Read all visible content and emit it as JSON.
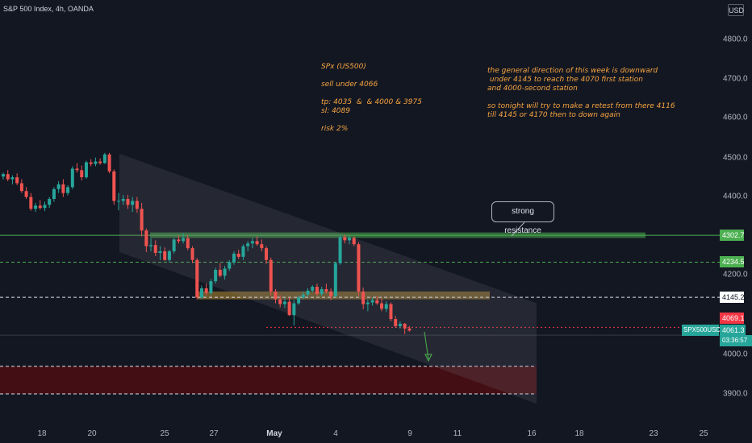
{
  "header": {
    "title": "S&P 500 Index, 4h, OANDA",
    "currency_button": "USD"
  },
  "notes": {
    "left": "SPx (US500)\n\nsell under 4066\n\ntp: 4035  &  & 4000 & 3975\nsl: 4089\n\nrisk 2%",
    "right": "the general direction of this week is downward\n under 4145 to reach the 4070 first station\nand 4000-second station\n\nso tonight will try to make a retest from there 4116\ntill 4145 or 4170 then to down again"
  },
  "callout": {
    "text": "strong resistance"
  },
  "price_axis": {
    "ticks": [
      "4800.0",
      "4700.0",
      "4600.0",
      "4500.0",
      "4400.0",
      "4200.0",
      "4000.0",
      "3900.0"
    ]
  },
  "time_axis": {
    "ticks": [
      "18",
      "20",
      "25",
      "27",
      "May",
      "4",
      "9",
      "11",
      "16",
      "18",
      "23",
      "25"
    ]
  },
  "price_badges": [
    {
      "text": "4302.7",
      "bg": "#4caf50",
      "fg": "#ffffff"
    },
    {
      "text": "4234.5",
      "bg": "#4caf50",
      "fg": "#ffffff"
    },
    {
      "text": "4145.2",
      "bg": "#ffffff",
      "fg": "#131722"
    },
    {
      "text": "4069.1",
      "bg": "#f23645",
      "fg": "#ffffff"
    }
  ],
  "symbol_badge": {
    "symbol": "SPX500USD",
    "price": "4061.3",
    "countdown": "03:36:57",
    "bg": "#26a69a"
  },
  "colors": {
    "up": "#26a69a",
    "down": "#ef5350",
    "resistance": "#4caf50",
    "support_zone": "#8b6d2e",
    "target_zone": "#4a0e13"
  },
  "chart_data": {
    "type": "candlestick",
    "symbol": "SPX500USD",
    "timeframe": "4h",
    "candles_ohlc": [
      [
        4452,
        4462,
        4444,
        4458
      ],
      [
        4458,
        4468,
        4440,
        4445
      ],
      [
        4445,
        4455,
        4432,
        4450
      ],
      [
        4450,
        4460,
        4430,
        4435
      ],
      [
        4435,
        4445,
        4410,
        4415
      ],
      [
        4415,
        4425,
        4395,
        4400
      ],
      [
        4400,
        4410,
        4365,
        4370
      ],
      [
        4370,
        4385,
        4362,
        4378
      ],
      [
        4378,
        4392,
        4368,
        4372
      ],
      [
        4372,
        4388,
        4364,
        4380
      ],
      [
        4380,
        4400,
        4372,
        4395
      ],
      [
        4395,
        4425,
        4388,
        4420
      ],
      [
        4420,
        4440,
        4410,
        4432
      ],
      [
        4432,
        4445,
        4400,
        4410
      ],
      [
        4410,
        4430,
        4404,
        4425
      ],
      [
        4425,
        4478,
        4420,
        4472
      ],
      [
        4472,
        4486,
        4462,
        4468
      ],
      [
        4468,
        4480,
        4442,
        4450
      ],
      [
        4450,
        4492,
        4446,
        4488
      ],
      [
        4488,
        4496,
        4478,
        4484
      ],
      [
        4484,
        4500,
        4478,
        4490
      ],
      [
        4490,
        4498,
        4482,
        4486
      ],
      [
        4486,
        4512,
        4484,
        4508
      ],
      [
        4508,
        4512,
        4460,
        4465
      ],
      [
        4465,
        4470,
        4380,
        4390
      ],
      [
        4390,
        4410,
        4366,
        4390
      ],
      [
        4390,
        4405,
        4380,
        4395
      ],
      [
        4395,
        4405,
        4370,
        4380
      ],
      [
        4380,
        4400,
        4362,
        4390
      ],
      [
        4390,
        4400,
        4360,
        4370
      ],
      [
        4370,
        4385,
        4300,
        4315
      ],
      [
        4315,
        4320,
        4260,
        4275
      ],
      [
        4275,
        4295,
        4262,
        4278
      ],
      [
        4278,
        4290,
        4250,
        4258
      ],
      [
        4258,
        4275,
        4240,
        4262
      ],
      [
        4262,
        4272,
        4238,
        4240
      ],
      [
        4240,
        4266,
        4234,
        4262
      ],
      [
        4262,
        4296,
        4256,
        4292
      ],
      [
        4292,
        4302,
        4282,
        4288
      ],
      [
        4288,
        4308,
        4282,
        4295
      ],
      [
        4295,
        4303,
        4265,
        4270
      ],
      [
        4270,
        4275,
        4232,
        4240
      ],
      [
        4240,
        4245,
        4140,
        4145
      ],
      [
        4145,
        4175,
        4140,
        4168
      ],
      [
        4168,
        4180,
        4150,
        4156
      ],
      [
        4156,
        4192,
        4150,
        4186
      ],
      [
        4186,
        4220,
        4180,
        4215
      ],
      [
        4215,
        4232,
        4196,
        4200
      ],
      [
        4200,
        4225,
        4190,
        4218
      ],
      [
        4218,
        4240,
        4212,
        4234
      ],
      [
        4234,
        4262,
        4228,
        4256
      ],
      [
        4256,
        4266,
        4242,
        4248
      ],
      [
        4248,
        4280,
        4240,
        4275
      ],
      [
        4275,
        4288,
        4262,
        4282
      ],
      [
        4282,
        4296,
        4270,
        4288
      ],
      [
        4288,
        4300,
        4276,
        4280
      ],
      [
        4280,
        4292,
        4262,
        4270
      ],
      [
        4270,
        4275,
        4230,
        4240
      ],
      [
        4240,
        4246,
        4150,
        4160
      ],
      [
        4160,
        4166,
        4130,
        4140
      ],
      [
        4140,
        4150,
        4120,
        4128
      ],
      [
        4128,
        4142,
        4118,
        4134
      ],
      [
        4134,
        4145,
        4098,
        4100
      ],
      [
        4100,
        4138,
        4074,
        4130
      ],
      [
        4130,
        4150,
        4126,
        4145
      ],
      [
        4145,
        4160,
        4140,
        4152
      ],
      [
        4152,
        4168,
        4146,
        4162
      ],
      [
        4162,
        4176,
        4158,
        4172
      ],
      [
        4172,
        4180,
        4150,
        4154
      ],
      [
        4154,
        4172,
        4148,
        4166
      ],
      [
        4166,
        4180,
        4155,
        4160
      ],
      [
        4160,
        4168,
        4138,
        4148
      ],
      [
        4148,
        4236,
        4145,
        4232
      ],
      [
        4232,
        4304,
        4228,
        4298
      ],
      [
        4298,
        4305,
        4282,
        4290
      ],
      [
        4290,
        4302,
        4280,
        4296
      ],
      [
        4296,
        4300,
        4275,
        4280
      ],
      [
        4280,
        4285,
        4150,
        4160
      ],
      [
        4160,
        4170,
        4115,
        4128
      ],
      [
        4128,
        4140,
        4110,
        4132
      ],
      [
        4132,
        4145,
        4124,
        4138
      ],
      [
        4138,
        4148,
        4126,
        4130
      ],
      [
        4130,
        4142,
        4110,
        4116
      ],
      [
        4116,
        4135,
        4108,
        4128
      ],
      [
        4128,
        4132,
        4084,
        4090
      ],
      [
        4090,
        4098,
        4068,
        4072
      ],
      [
        4072,
        4084,
        4066,
        4078
      ],
      [
        4078,
        4080,
        4052,
        4066
      ],
      [
        4066,
        4072,
        4058,
        4061
      ]
    ],
    "horizontal_levels": [
      4302.7,
      4234.5,
      4145.2,
      4069.1
    ],
    "zones": [
      {
        "name": "strong resistance",
        "from": 4296,
        "to": 4310
      },
      {
        "name": "support",
        "from": 4140,
        "to": 4160
      },
      {
        "name": "target",
        "from": 3900,
        "to": 3970
      }
    ],
    "channel": {
      "upper": [
        4510,
        4130
      ],
      "lower": [
        4260,
        3875
      ]
    },
    "last_price": 4061.3
  }
}
